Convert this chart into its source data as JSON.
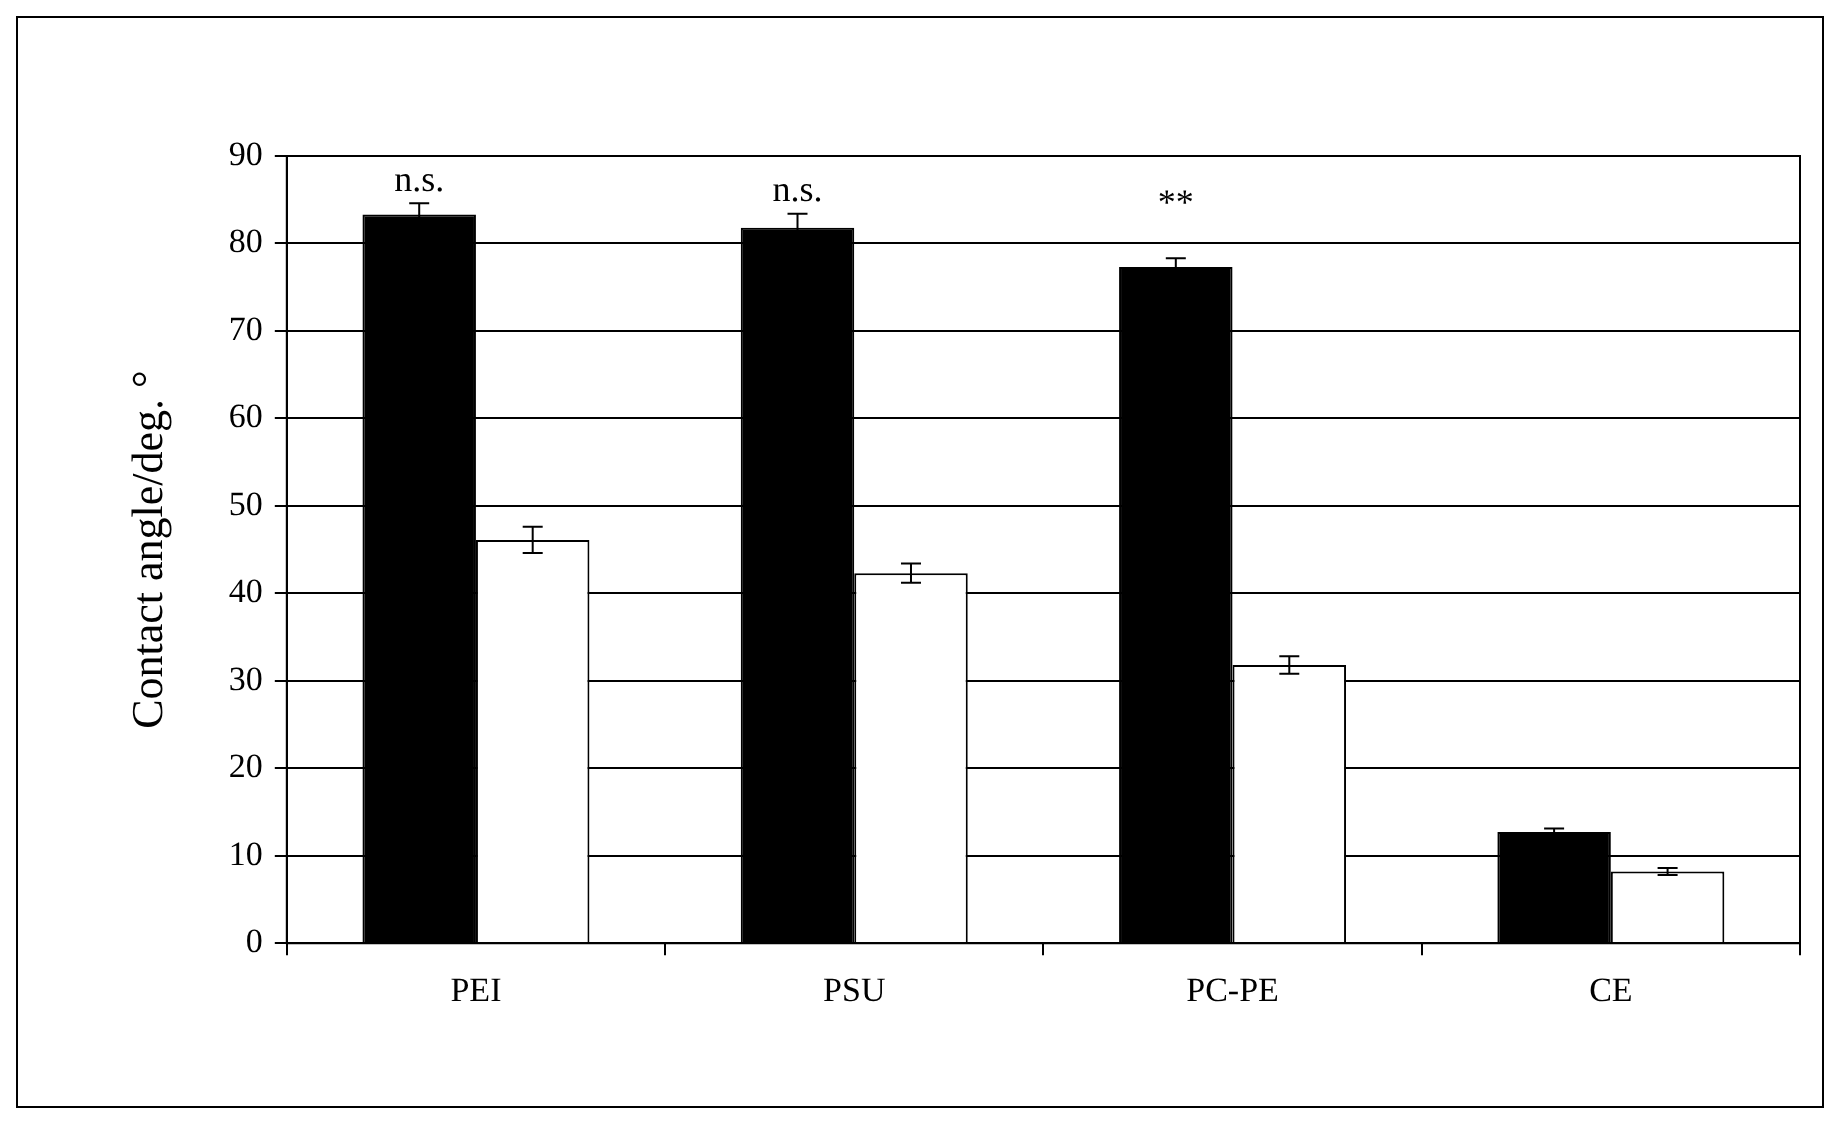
{
  "chart_data": {
    "type": "bar",
    "ylabel": "Contact angle/deg. °",
    "categories": [
      "PEI",
      "PSU",
      "PC-PE",
      "CE"
    ],
    "series": [
      {
        "color": "#000000",
        "values": [
          83.3,
          81.8,
          77.3,
          12.7
        ],
        "errors": [
          1.3,
          1.6,
          1.0,
          0.4
        ]
      },
      {
        "color": "#ffffff",
        "values": [
          46.1,
          42.3,
          31.8,
          8.2
        ],
        "errors": [
          1.5,
          1.1,
          1.0,
          0.4
        ]
      }
    ],
    "ylim": [
      0,
      90
    ],
    "yticks": [
      0,
      10,
      20,
      30,
      40,
      50,
      60,
      70,
      80,
      90
    ],
    "grid": "y",
    "legend": false,
    "annotations": [
      "n.s.",
      "n.s.",
      "**"
    ]
  }
}
